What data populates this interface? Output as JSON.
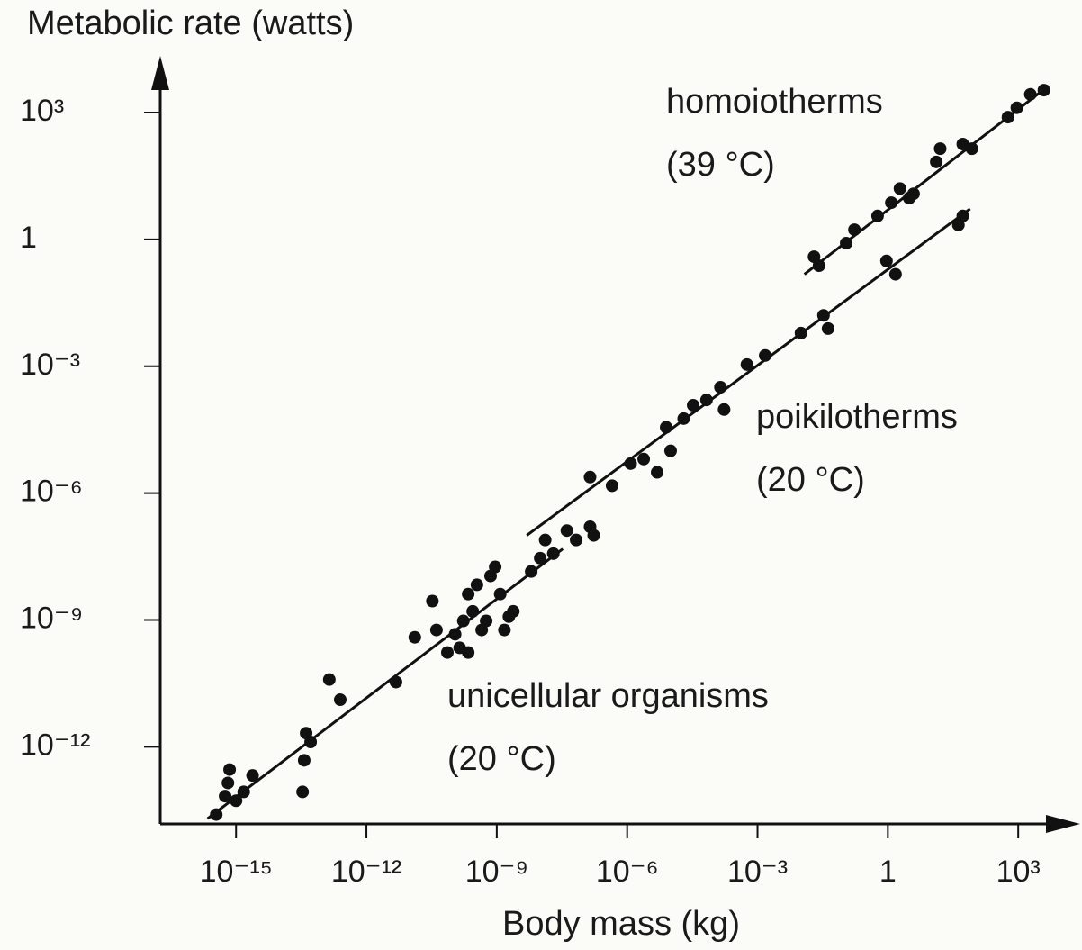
{
  "chart_data": {
    "type": "scatter",
    "y_label": "Metabolic rate (watts)",
    "x_label": "Body mass (kg)",
    "xscale": "log",
    "yscale": "log",
    "xlim": [
      1.8e-17,
      21000.0
    ],
    "ylim": [
      1.5e-14,
      19000.0
    ],
    "xticks": [
      {
        "value": 1e-15,
        "label": "10⁻¹⁵"
      },
      {
        "value": 1e-12,
        "label": "10⁻¹²"
      },
      {
        "value": 1e-09,
        "label": "10⁻⁹"
      },
      {
        "value": 1e-06,
        "label": "10⁻⁶"
      },
      {
        "value": 0.001,
        "label": "10⁻³"
      },
      1,
      {
        "value": 1000,
        "label": "10³"
      }
    ],
    "yticks": [
      {
        "value": 1e-12,
        "label": "10⁻¹²"
      },
      {
        "value": 1e-09,
        "label": "10⁻⁹"
      },
      {
        "value": 1e-06,
        "label": "10⁻⁶"
      },
      {
        "value": 0.001,
        "label": "10⁻³"
      },
      1,
      {
        "value": 1000,
        "label": "10³"
      }
    ],
    "grid": false,
    "series": [
      {
        "name": "unicellular organisms",
        "note": "(20 °C)",
        "color": "#111111",
        "x": [
          3.5e-16,
          5.6e-16,
          7.1e-16,
          6.5e-16,
          1e-15,
          1.5e-15,
          2.4e-15,
          4.1e-14,
          3.7e-14,
          3.4e-14,
          5.2e-14,
          1.4e-13,
          2.5e-13,
          4.8e-12,
          1.3e-11,
          3.3e-11,
          4.1e-11,
          7.3e-11,
          1.1e-10,
          1.7e-10,
          2.2e-10,
          2.8e-10,
          3.5e-10,
          4.5e-10,
          5.7e-10,
          7.2e-10,
          9.2e-10,
          1.2e-09,
          1.5e-09,
          1.9e-09,
          2.4e-09,
          1.4e-10,
          2.2e-10
        ],
        "values": [
          2.5e-14,
          6.8e-14,
          2.9e-13,
          1.4e-13,
          5.3e-14,
          8.6e-14,
          2.1e-13,
          2.1e-12,
          4.8e-13,
          8.6e-14,
          1.3e-12,
          3.9e-11,
          1.3e-11,
          3.4e-11,
          3.9e-10,
          2.8e-09,
          5.8e-10,
          1.7e-10,
          4.6e-10,
          9.5e-10,
          4.1e-09,
          1.6e-09,
          6.8e-09,
          5.8e-10,
          9.5e-10,
          1.1e-08,
          1.8e-08,
          4.1e-09,
          5.8e-10,
          1.2e-09,
          1.6e-09,
          2.2e-10,
          1.7e-10
        ],
        "fit_x": [
          2.2e-16,
          3.3e-08
        ],
        "fit_y": [
          2e-14,
          4.8e-08
        ]
      },
      {
        "name": "poikilotherms",
        "note": "(20 °C)",
        "color": "#111111",
        "x": [
          6.2e-09,
          1e-08,
          1.3e-08,
          2e-08,
          4.1e-08,
          6.7e-08,
          1.4e-07,
          1.7e-07,
          1.4e-07,
          4.5e-07,
          1.2e-06,
          2.4e-06,
          4.9e-06,
          7.9e-06,
          1e-05,
          2e-05,
          3.3e-05,
          6.7e-05,
          0.00014,
          0.00017,
          0.00057,
          0.0015,
          0.01,
          0.033,
          0.042,
          0.93,
          1.5,
          42,
          53
        ],
        "values": [
          1.4e-08,
          2.9e-08,
          7.8e-08,
          3.7e-08,
          1.3e-07,
          7.8e-08,
          1.6e-07,
          1e-07,
          2.4e-06,
          1.5e-06,
          5e-06,
          6.4e-06,
          3.1e-06,
          3.6e-05,
          1e-05,
          5.8e-05,
          0.00012,
          0.00016,
          0.00032,
          9.5e-05,
          0.0011,
          0.0018,
          0.0061,
          0.016,
          0.0078,
          0.31,
          0.15,
          2.2,
          3.6
        ],
        "fit_x": [
          4.9e-09,
          78
        ],
        "fit_y": [
          1e-07,
          5.3
        ]
      },
      {
        "name": "homoiotherms",
        "note": "(39 °C)",
        "color": "#111111",
        "x": [
          0.02,
          0.026,
          0.11,
          0.17,
          0.58,
          1.2,
          1.9,
          3.1,
          3.9,
          13,
          16,
          53,
          86,
          580,
          930,
          1900,
          3900
        ],
        "values": [
          0.39,
          0.24,
          0.82,
          1.7,
          3.6,
          7.4,
          16,
          9.5,
          12,
          68,
          140,
          180,
          140,
          780,
          1300,
          2700,
          3400
        ],
        "fit_x": [
          0.012,
          5000
        ],
        "fit_y": [
          0.15,
          4300
        ]
      }
    ]
  }
}
